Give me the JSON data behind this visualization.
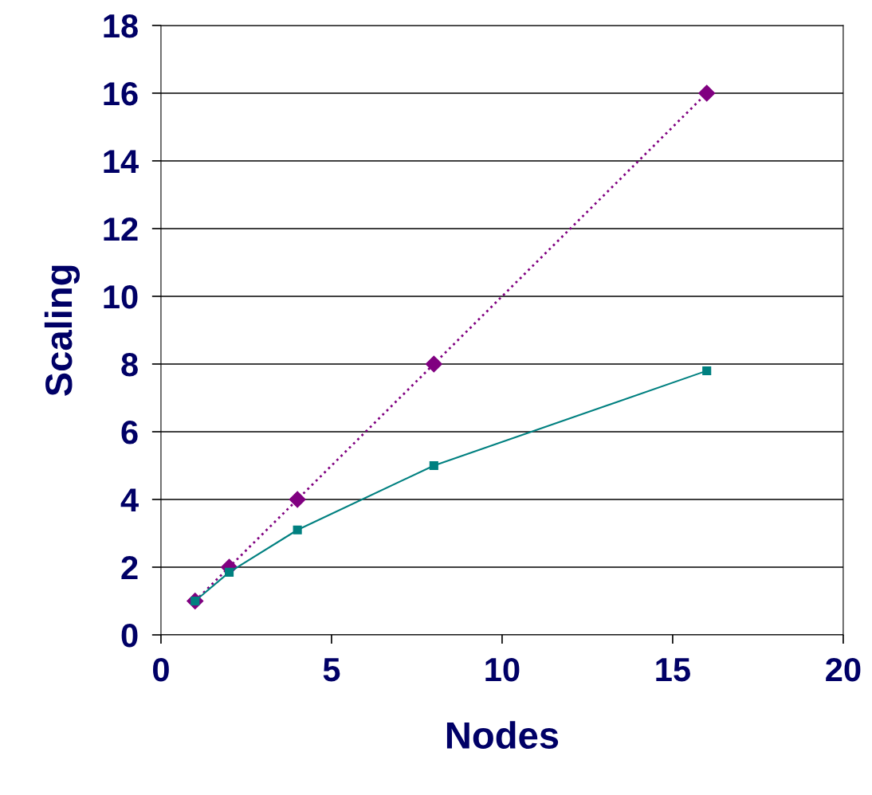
{
  "chart_data": {
    "type": "line",
    "xlabel": "Nodes",
    "ylabel": "Scaling",
    "xlim": [
      0,
      20
    ],
    "xticks": [
      0,
      5,
      10,
      15,
      20
    ],
    "ylim": [
      0,
      18
    ],
    "yticks": [
      0,
      2,
      4,
      6,
      8,
      10,
      12,
      14,
      16,
      18
    ],
    "grid": "y",
    "series": [
      {
        "color": "#800080",
        "x": [
          1,
          2,
          4,
          8,
          16
        ],
        "values": [
          1,
          2,
          4,
          8,
          16
        ],
        "marker": "diamond",
        "line_style": "dotted"
      },
      {
        "color": "#008080",
        "x": [
          1,
          2,
          4,
          8,
          16
        ],
        "values": [
          1.0,
          1.85,
          3.1,
          5.0,
          7.8
        ],
        "marker": "square",
        "line_style": "solid"
      }
    ]
  }
}
